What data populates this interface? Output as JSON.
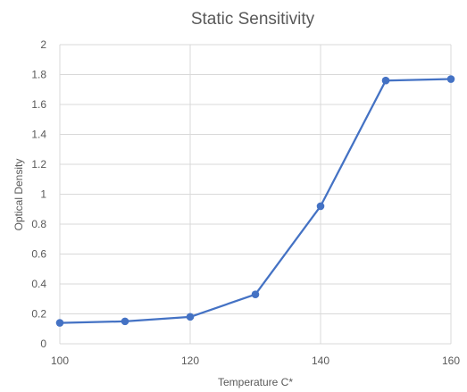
{
  "chart_data": {
    "type": "scatter",
    "title": "Static Sensitivity",
    "xlabel": "Temperature C*",
    "ylabel": "Optical Density",
    "xlim": [
      100,
      160
    ],
    "ylim": [
      0,
      2
    ],
    "x_ticks": [
      "100",
      "120",
      "140",
      "160"
    ],
    "y_ticks": [
      "0",
      "0.2",
      "0.4",
      "0.6",
      "0.8",
      "1",
      "1.2",
      "1.4",
      "1.6",
      "1.8",
      "2"
    ],
    "grid": true,
    "legend": "none",
    "series": [
      {
        "color": "#4472c4",
        "x": [
          100,
          110,
          120,
          130,
          140,
          150,
          160
        ],
        "y": [
          0.14,
          0.15,
          0.18,
          0.33,
          0.92,
          1.76,
          1.77
        ]
      }
    ]
  }
}
